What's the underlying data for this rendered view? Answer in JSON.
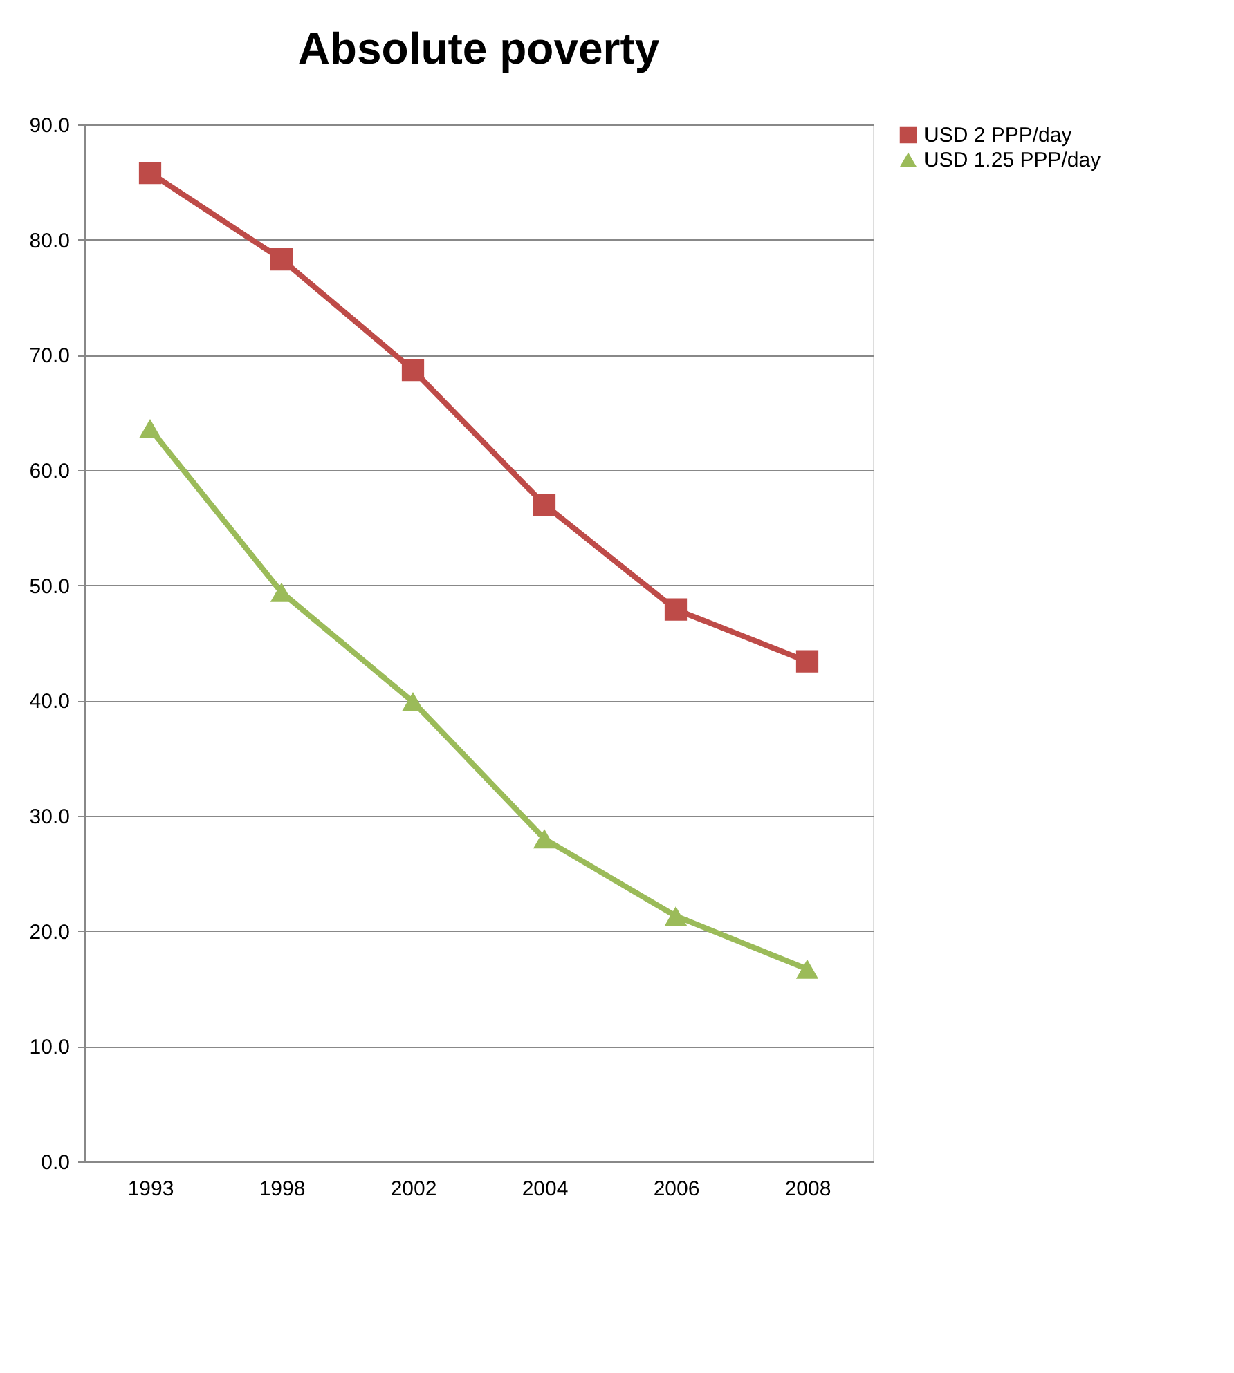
{
  "chart_data": {
    "type": "line",
    "title": "Absolute poverty",
    "categories": [
      "1993",
      "1998",
      "2002",
      "2004",
      "2006",
      "2008"
    ],
    "series": [
      {
        "name": "USD 2 PPP/day",
        "color": "#be4b48",
        "marker": "square",
        "values": [
          85.8,
          78.3,
          68.7,
          57.0,
          47.9,
          43.4
        ]
      },
      {
        "name": "USD 1.25 PPP/day",
        "color": "#9bbb59",
        "marker": "triangle",
        "values": [
          63.6,
          49.4,
          39.9,
          28.0,
          21.3,
          16.7
        ]
      }
    ],
    "ylim": [
      0,
      90
    ],
    "yticks": [
      {
        "value": 0,
        "label": "0.0"
      },
      {
        "value": 10,
        "label": "10.0"
      },
      {
        "value": 20,
        "label": "20.0"
      },
      {
        "value": 30,
        "label": "30.0"
      },
      {
        "value": 40,
        "label": "40.0"
      },
      {
        "value": 50,
        "label": "50.0"
      },
      {
        "value": 60,
        "label": "60.0"
      },
      {
        "value": 70,
        "label": "70.0"
      },
      {
        "value": 80,
        "label": "80.0"
      },
      {
        "value": 90,
        "label": "90.0"
      }
    ],
    "grid": "y",
    "legend": "right"
  }
}
